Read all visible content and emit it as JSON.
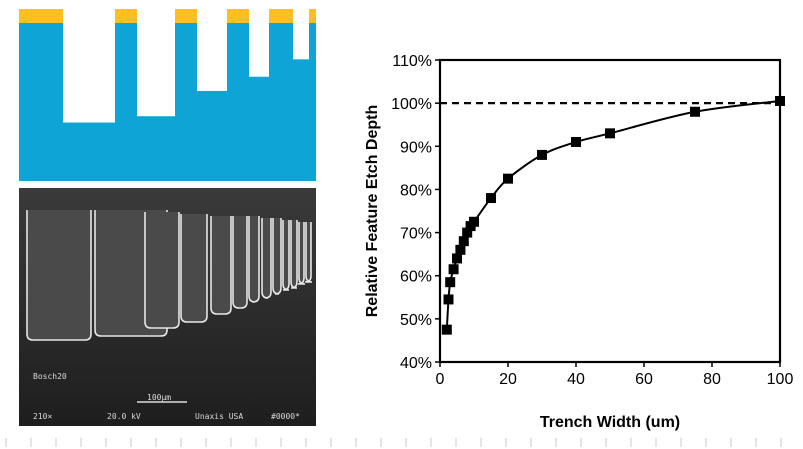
{
  "colors": {
    "substrate": "#0ea5d6",
    "mask": "#fbbf24",
    "sem_background": "#2b2b2b",
    "sem_wall": "#e6e6e6",
    "plot_line": "#000000"
  },
  "schematic": {
    "mask_segments": 6,
    "trenches": [
      {
        "depth_fraction": 0.63
      },
      {
        "depth_fraction": 0.59
      },
      {
        "depth_fraction": 0.43
      },
      {
        "depth_fraction": 0.34
      },
      {
        "depth_fraction": 0.23
      }
    ]
  },
  "sem": {
    "label_process": "Bosch20",
    "label_mag": "210×",
    "label_kv": "20.0 kV",
    "label_scale": "100µm",
    "label_org": "Unaxis USA",
    "label_id": "#0000*"
  },
  "chart_data": {
    "type": "line",
    "title": "",
    "xlabel": "Trench Width (um)",
    "ylabel": "Relative Feature Etch Depth",
    "xlim": [
      0,
      100
    ],
    "ylim": [
      40,
      110
    ],
    "xticks": [
      0,
      20,
      40,
      60,
      80,
      100
    ],
    "yticks": [
      40,
      50,
      60,
      70,
      80,
      90,
      100,
      110
    ],
    "ytick_labels": [
      "40%",
      "50%",
      "60%",
      "70%",
      "80%",
      "90%",
      "100%",
      "110%"
    ],
    "reference_line": {
      "y": 100,
      "style": "dashed"
    },
    "grid": false,
    "series": [
      {
        "marker": "square",
        "x": [
          2,
          2.5,
          3,
          4,
          5,
          6,
          7,
          8,
          9,
          10,
          15,
          20,
          30,
          40,
          50,
          75,
          100
        ],
        "y": [
          47.5,
          54.5,
          58.5,
          61.5,
          64,
          66,
          68,
          70,
          71.5,
          72.5,
          78,
          82.5,
          88,
          91,
          93,
          98,
          100.5
        ]
      }
    ]
  }
}
